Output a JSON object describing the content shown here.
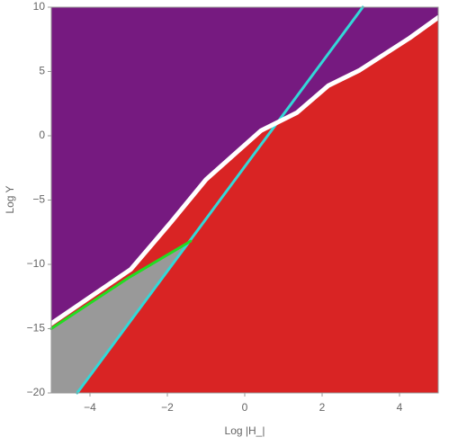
{
  "chart_data": {
    "type": "region",
    "x_label": "Log |H_|",
    "y_label": "Log Y",
    "xlim": [
      -5,
      5
    ],
    "ylim": [
      -20,
      10
    ],
    "xticks": [
      {
        "value": -4,
        "label": "−4"
      },
      {
        "value": -2,
        "label": "−2"
      },
      0,
      2,
      4
    ],
    "yticks": [
      {
        "value": -20,
        "label": "−20"
      },
      {
        "value": -15,
        "label": "−15"
      },
      {
        "value": -10,
        "label": "−10"
      },
      {
        "value": -5,
        "label": "−5"
      },
      0,
      5,
      10
    ],
    "background_color": "#d92424",
    "series": [
      {
        "color": "#ffffff",
        "fill_above": "#761a80",
        "width": 5,
        "x": [
          -5,
          -2.95,
          -1.9,
          -1.0,
          0.42,
          1.35,
          2.16,
          2.97,
          4.26,
          5
        ],
        "values": [
          -14.6,
          -10.4,
          -6.7,
          -3.4,
          0.4,
          1.8,
          3.9,
          5.1,
          7.6,
          9.2
        ]
      },
      {
        "color": "#22dd22",
        "fill_below": "#999999",
        "width": 3,
        "x": [
          -5,
          -2.98,
          -1.4
        ],
        "values": [
          -15.0,
          -11.0,
          -8.2
        ]
      },
      {
        "color": "#33d8d8",
        "width": 3,
        "x": [
          -4.33,
          3.05
        ],
        "values": [
          -20,
          10
        ]
      }
    ]
  }
}
